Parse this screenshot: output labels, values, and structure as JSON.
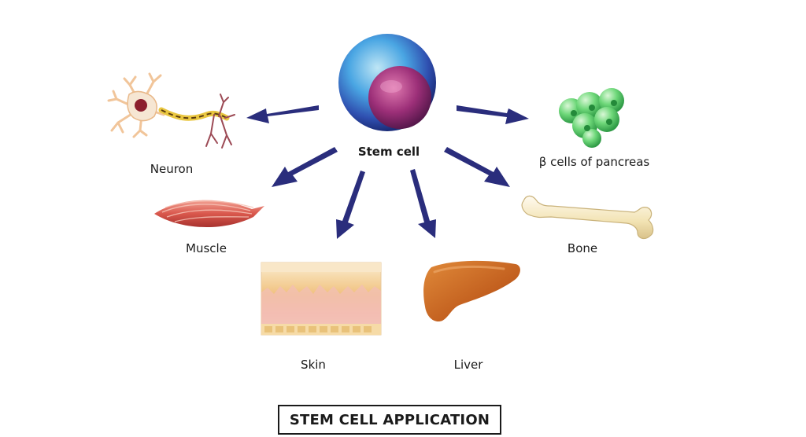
{
  "center": {
    "label": "Stem cell"
  },
  "targets": [
    {
      "id": "neuron",
      "label": "Neuron"
    },
    {
      "id": "beta-cells",
      "label": "β cells of pancreas"
    },
    {
      "id": "muscle",
      "label": "Muscle"
    },
    {
      "id": "bone",
      "label": "Bone"
    },
    {
      "id": "skin",
      "label": "Skin"
    },
    {
      "id": "liver",
      "label": "Liver"
    }
  ],
  "caption": "STEM CELL APPLICATION",
  "colors": {
    "arrow": "#2a2d7c",
    "stem_outer": "#3c9be0",
    "stem_nucleus": "#8a2a6a",
    "beta_cells": "#5fd36f",
    "muscle": "#d9675e",
    "bone": "#f4e7b8",
    "liver": "#c8641f",
    "neuron_axon": "#e9c640"
  }
}
